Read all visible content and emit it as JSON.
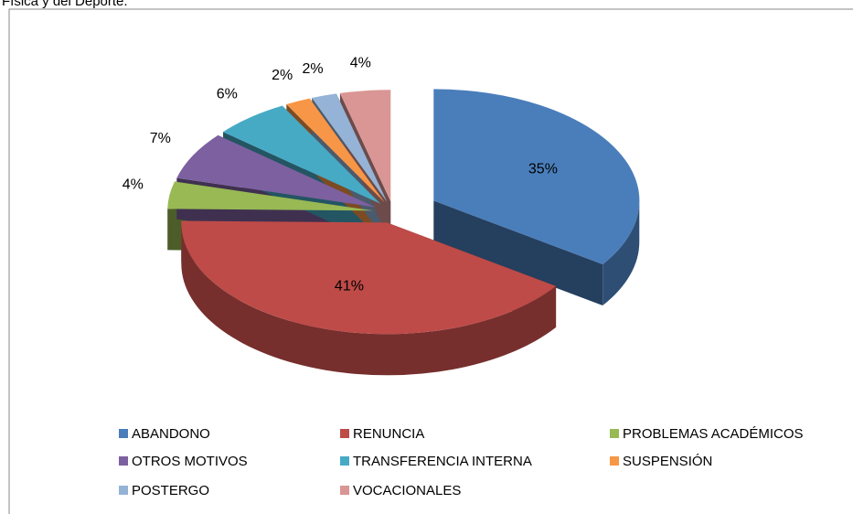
{
  "caption": "Física y del Deporte.",
  "chart_data": {
    "type": "pie",
    "categories": [
      "ABANDONO",
      "RENUNCIA",
      "PROBLEMAS ACADÉMICOS",
      "OTROS MOTIVOS",
      "TRANSFERENCIA INTERNA",
      "SUSPENSIÓN",
      "POSTERGO",
      "VOCACIONALES"
    ],
    "values": [
      35,
      41,
      4,
      7,
      6,
      2,
      2,
      4
    ],
    "value_labels": [
      "35%",
      "41%",
      "4%",
      "7%",
      "6%",
      "2%",
      "2%",
      "4%"
    ],
    "colors": [
      "#4a7ebb",
      "#be4b48",
      "#98b954",
      "#7d60a0",
      "#46aac5",
      "#f79646",
      "#95b3d7",
      "#d99694"
    ],
    "legend": "bottom"
  }
}
